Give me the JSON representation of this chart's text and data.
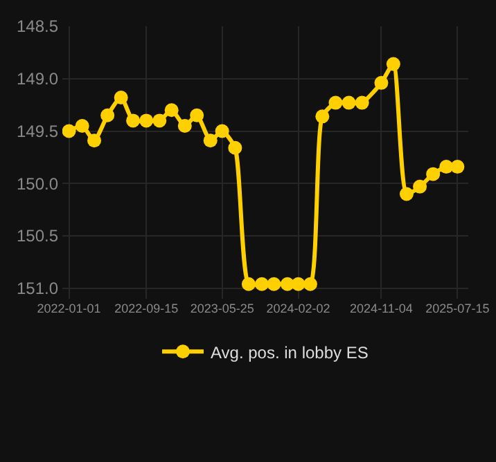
{
  "chart_data": {
    "type": "line",
    "x": [
      "2022-01-01",
      "2022-02-14",
      "2022-03-26",
      "2022-05-09",
      "2022-06-23",
      "2022-08-02",
      "2022-09-15",
      "2022-10-29",
      "2022-12-08",
      "2023-01-21",
      "2023-03-02",
      "2023-04-16",
      "2023-05-25",
      "2023-07-07",
      "2023-08-21",
      "2023-10-04",
      "2023-11-13",
      "2023-12-28",
      "2024-02-02",
      "2024-03-13",
      "2024-04-22",
      "2024-06-05",
      "2024-07-19",
      "2024-09-01",
      "2024-11-04",
      "2024-12-14",
      "2025-01-27",
      "2025-03-12",
      "2025-04-25",
      "2025-06-08",
      "2025-07-15"
    ],
    "series": [
      {
        "name": "Avg. pos. in lobby ES",
        "color": "#ffd000",
        "values": [
          149.5,
          149.45,
          149.59,
          149.35,
          149.18,
          149.4,
          149.4,
          149.4,
          149.3,
          149.45,
          149.35,
          149.59,
          149.5,
          149.66,
          150.96,
          150.96,
          150.96,
          150.96,
          150.96,
          150.96,
          149.36,
          149.23,
          149.23,
          149.23,
          149.04,
          148.86,
          150.1,
          150.03,
          149.91,
          149.84,
          149.84
        ]
      }
    ],
    "xlim": [
      "2021-12-10",
      "2025-08-20"
    ],
    "xticks": [
      "2022-01-01",
      "2022-09-15",
      "2023-05-25",
      "2024-02-02",
      "2024-11-04",
      "2025-07-15"
    ],
    "ylim": [
      151.1,
      148.5
    ],
    "yticks": [
      {
        "value": 148.5,
        "label": "148.5"
      },
      {
        "value": 149,
        "label": "149.0"
      },
      {
        "value": 149.5,
        "label": "149.5"
      },
      {
        "value": 150,
        "label": "150.0"
      },
      {
        "value": 150.5,
        "label": "150.5"
      },
      {
        "value": 151,
        "label": "151.0"
      }
    ],
    "grid": true,
    "legend": "bottom",
    "marker": "circle",
    "line_style": "solid"
  }
}
